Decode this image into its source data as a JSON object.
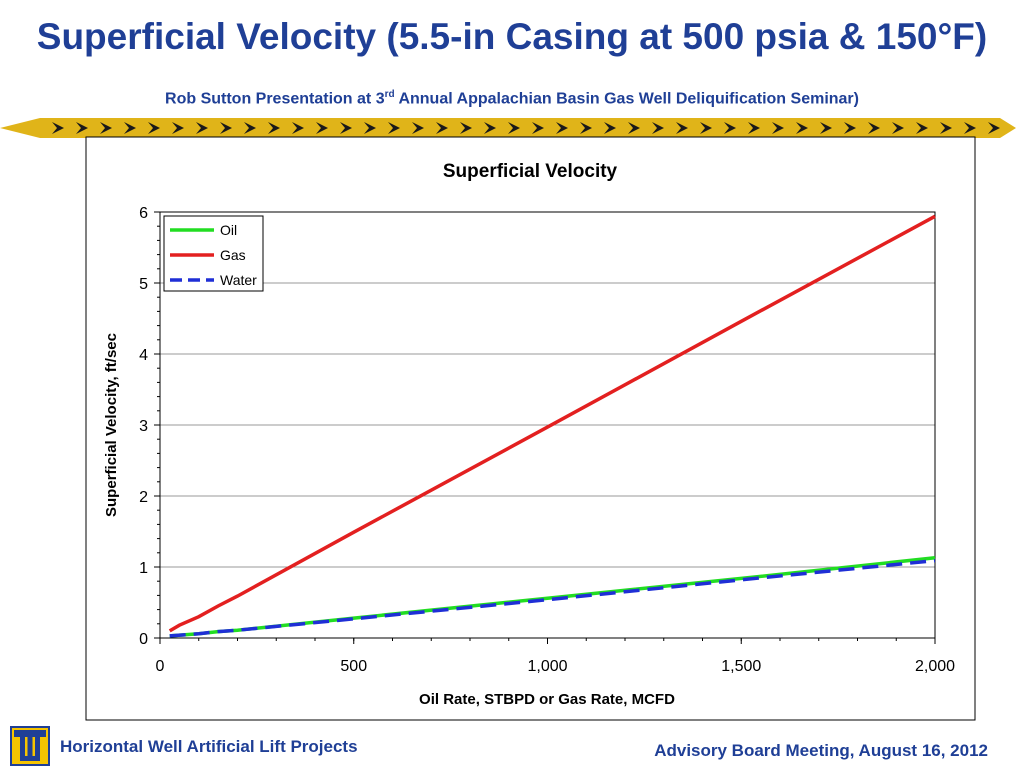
{
  "slide": {
    "title": "Superficial Velocity (5.5-in Casing at 500 psia & 150°F)",
    "subtitle_pre": "Rob Sutton Presentation at 3",
    "subtitle_sup": "rd",
    "subtitle_post": " Annual Appalachian Basin Gas Well Deliquification Seminar)"
  },
  "footer": {
    "left": "Horizontal Well Artificial Lift Projects",
    "right": "Advisory Board Meeting, August 16, 2012",
    "logo_icon": "university-tu-logo-icon"
  },
  "colors": {
    "title_blue": "#1f3f96",
    "band_gold": "#e0b419",
    "band_dark": "#1a1a1a"
  },
  "chart_data": {
    "type": "line",
    "title": "Superficial Velocity",
    "xlabel": "Oil Rate, STBPD or Gas Rate, MCFD",
    "ylabel": "Superficial Velocity, ft/sec",
    "xlim": [
      0,
      2000
    ],
    "ylim": [
      0,
      6
    ],
    "x_ticks": [
      0,
      500,
      1000,
      1500,
      2000
    ],
    "x_tick_labels": [
      "0",
      "500",
      "1,000",
      "1,500",
      "2,000"
    ],
    "y_ticks": [
      0,
      1,
      2,
      3,
      4,
      5,
      6
    ],
    "y_tick_labels": [
      "0",
      "1",
      "2",
      "3",
      "4",
      "5",
      "6"
    ],
    "grid": "horizontal",
    "legend_position": "top-left",
    "series": [
      {
        "name": "Oil",
        "color": "#22dd22",
        "dash": "solid",
        "x": [
          25,
          100,
          150,
          200,
          500,
          1000,
          1500,
          2000
        ],
        "y": [
          0.03,
          0.06,
          0.09,
          0.11,
          0.28,
          0.56,
          0.84,
          1.13
        ]
      },
      {
        "name": "Gas",
        "color": "#e32020",
        "dash": "solid",
        "x": [
          25,
          50,
          100,
          150,
          200,
          500,
          1000,
          1500,
          2000
        ],
        "y": [
          0.1,
          0.18,
          0.3,
          0.45,
          0.59,
          1.49,
          2.97,
          4.46,
          5.94
        ]
      },
      {
        "name": "Water",
        "color": "#1f2fd6",
        "dash": "dashed",
        "x": [
          25,
          100,
          150,
          200,
          500,
          1000,
          1500,
          2000
        ],
        "y": [
          0.03,
          0.06,
          0.09,
          0.11,
          0.27,
          0.54,
          0.82,
          1.09
        ]
      }
    ]
  }
}
